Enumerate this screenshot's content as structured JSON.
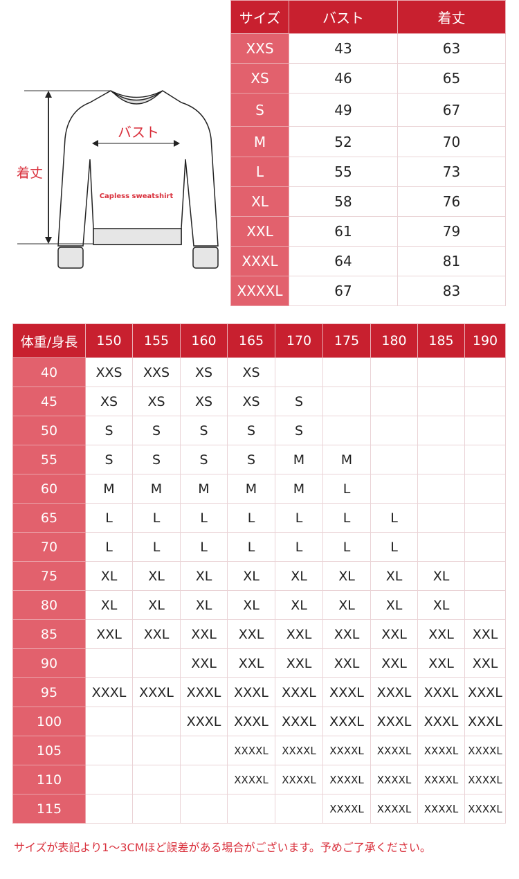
{
  "illustration": {
    "bust_label": "バスト",
    "length_label": "着丈",
    "garment_label": "Capless sweatshirt"
  },
  "size_table": {
    "headers": [
      "サイズ",
      "バスト",
      "着丈"
    ],
    "rows": [
      [
        "XXS",
        "43",
        "63"
      ],
      [
        "XS",
        "46",
        "65"
      ],
      [
        "S",
        "49",
        "67"
      ],
      [
        "M",
        "52",
        "70"
      ],
      [
        "L",
        "55",
        "73"
      ],
      [
        "XL",
        "58",
        "76"
      ],
      [
        "XXL",
        "61",
        "79"
      ],
      [
        "XXXL",
        "64",
        "81"
      ],
      [
        "XXXXL",
        "67",
        "83"
      ]
    ]
  },
  "fit_table": {
    "corner": "体重/身長",
    "heights": [
      "150",
      "155",
      "160",
      "165",
      "170",
      "175",
      "180",
      "185",
      "190"
    ],
    "rows": [
      {
        "weight": "40",
        "sizes": [
          "XXS",
          "XXS",
          "XS",
          "XS",
          "",
          "",
          "",
          "",
          ""
        ]
      },
      {
        "weight": "45",
        "sizes": [
          "XS",
          "XS",
          "XS",
          "XS",
          "S",
          "",
          "",
          "",
          ""
        ]
      },
      {
        "weight": "50",
        "sizes": [
          "S",
          "S",
          "S",
          "S",
          "S",
          "",
          "",
          "",
          ""
        ]
      },
      {
        "weight": "55",
        "sizes": [
          "S",
          "S",
          "S",
          "S",
          "M",
          "M",
          "",
          "",
          ""
        ]
      },
      {
        "weight": "60",
        "sizes": [
          "M",
          "M",
          "M",
          "M",
          "M",
          "L",
          "",
          "",
          ""
        ]
      },
      {
        "weight": "65",
        "sizes": [
          "L",
          "L",
          "L",
          "L",
          "L",
          "L",
          "L",
          "",
          ""
        ]
      },
      {
        "weight": "70",
        "sizes": [
          "L",
          "L",
          "L",
          "L",
          "L",
          "L",
          "L",
          "",
          ""
        ]
      },
      {
        "weight": "75",
        "sizes": [
          "XL",
          "XL",
          "XL",
          "XL",
          "XL",
          "XL",
          "XL",
          "XL",
          ""
        ]
      },
      {
        "weight": "80",
        "sizes": [
          "XL",
          "XL",
          "XL",
          "XL",
          "XL",
          "XL",
          "XL",
          "XL",
          ""
        ]
      },
      {
        "weight": "85",
        "sizes": [
          "XXL",
          "XXL",
          "XXL",
          "XXL",
          "XXL",
          "XXL",
          "XXL",
          "XXL",
          "XXL"
        ]
      },
      {
        "weight": "90",
        "sizes": [
          "",
          "",
          "XXL",
          "XXL",
          "XXL",
          "XXL",
          "XXL",
          "XXL",
          "XXL"
        ]
      },
      {
        "weight": "95",
        "sizes": [
          "XXXL",
          "XXXL",
          "XXXL",
          "XXXL",
          "XXXL",
          "XXXL",
          "XXXL",
          "XXXL",
          "XXXL"
        ]
      },
      {
        "weight": "100",
        "sizes": [
          "",
          "",
          "XXXL",
          "XXXL",
          "XXXL",
          "XXXL",
          "XXXL",
          "XXXL",
          "XXXL"
        ]
      },
      {
        "weight": "105",
        "sizes": [
          "",
          "",
          "",
          "XXXXL",
          "XXXXL",
          "XXXXL",
          "XXXXL",
          "XXXXL",
          "XXXXL"
        ]
      },
      {
        "weight": "110",
        "sizes": [
          "",
          "",
          "",
          "XXXXL",
          "XXXXL",
          "XXXXL",
          "XXXXL",
          "XXXXL",
          "XXXXL"
        ]
      },
      {
        "weight": "115",
        "sizes": [
          "",
          "",
          "",
          "",
          "",
          "XXXXL",
          "XXXXL",
          "XXXXL",
          "XXXXL"
        ]
      }
    ]
  },
  "note": "サイズが表記より1～3CMほど誤差がある場合がございます。予めご了承ください。",
  "colors": {
    "header": "#c8202f",
    "label_column": "#e2616d",
    "note": "#d9303c"
  }
}
